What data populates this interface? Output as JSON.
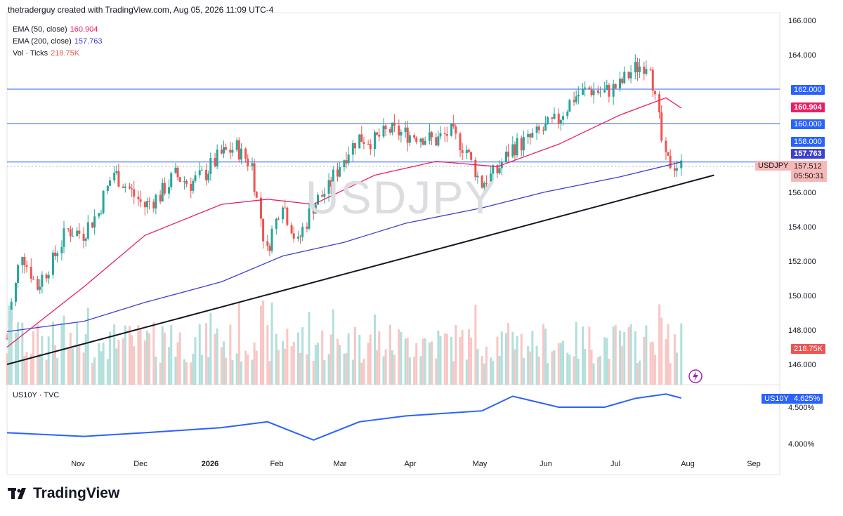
{
  "header": {
    "text": "thetraderguy created with TradingView.com, Aug 05, 2026 11:09 UTC-4"
  },
  "legend": [
    {
      "label": "EMA (50, close)",
      "value": "160.904",
      "color": "#e91e63"
    },
    {
      "label": "EMA (200, close)",
      "value": "157.763",
      "color": "#3f3fd0"
    },
    {
      "label": "Vol · Ticks",
      "value": "218.75K",
      "color": "#ef5350"
    }
  ],
  "watermark": "USDJPY",
  "lower_pane": {
    "label": "US10Y · TVC"
  },
  "price_axis": [
    "166.000",
    "164.000",
    "162.000",
    "160.000",
    "158.000",
    "156.000",
    "154.000",
    "152.000",
    "150.000",
    "148.000",
    "146.000"
  ],
  "lower_axis": [
    "4.500%",
    "4.000%"
  ],
  "time_axis": [
    "Nov",
    "Dec",
    "2026",
    "Feb",
    "Mar",
    "Apr",
    "May",
    "Jun",
    "Jul",
    "Aug",
    "Sep"
  ],
  "price_tags": {
    "level_162": "162.000",
    "ema50": "160.904",
    "level_160": "160.000",
    "level_158": "158.000",
    "ema200": "157.763",
    "symbol": "USDJPY",
    "last_price": "157.512",
    "countdown": "05:50:31",
    "volume": "218.75K",
    "us10y_symbol": "US10Y",
    "us10y_value": "4.625%"
  },
  "colors": {
    "up": "#26a69a",
    "down": "#ef5350",
    "vol_up": "#b2dfdb",
    "vol_down": "#f8c6c4",
    "ema50": "#e91e63",
    "ema200": "#3f3fd0",
    "hline": "#2962ff",
    "us10y": "#2962ff"
  },
  "logo_text": "TradingView",
  "chart_data": {
    "type": "candlestick",
    "symbol": "USDJPY",
    "y_range": [
      145.0,
      166.5
    ],
    "horizontal_levels": [
      162.0,
      160.0,
      157.763
    ],
    "trendline": [
      {
        "date": "2025-10-01",
        "price": 146.0
      },
      {
        "date": "2026-08-20",
        "price": 157.0
      }
    ],
    "series": [
      {
        "name": "USDJPY",
        "points": [
          {
            "date": "2025-10-01",
            "close": 147.5
          },
          {
            "date": "2025-10-08",
            "close": 152.6
          },
          {
            "date": "2025-10-15",
            "close": 150.5
          },
          {
            "date": "2025-10-22",
            "close": 152.0
          },
          {
            "date": "2025-10-29",
            "close": 153.8
          },
          {
            "date": "2025-11-05",
            "close": 153.6
          },
          {
            "date": "2025-11-12",
            "close": 154.8
          },
          {
            "date": "2025-11-19",
            "close": 157.2
          },
          {
            "date": "2025-11-26",
            "close": 156.2
          },
          {
            "date": "2025-12-03",
            "close": 155.2
          },
          {
            "date": "2025-12-10",
            "close": 155.8
          },
          {
            "date": "2025-12-17",
            "close": 157.0
          },
          {
            "date": "2025-12-24",
            "close": 156.5
          },
          {
            "date": "2025-12-31",
            "close": 157.1
          },
          {
            "date": "2026-01-07",
            "close": 158.2
          },
          {
            "date": "2026-01-14",
            "close": 158.6
          },
          {
            "date": "2026-01-21",
            "close": 157.6
          },
          {
            "date": "2026-01-28",
            "close": 152.5
          },
          {
            "date": "2026-02-04",
            "close": 155.6
          },
          {
            "date": "2026-02-11",
            "close": 153.0
          },
          {
            "date": "2026-02-18",
            "close": 155.2
          },
          {
            "date": "2026-02-25",
            "close": 156.2
          },
          {
            "date": "2026-03-04",
            "close": 158.0
          },
          {
            "date": "2026-03-11",
            "close": 159.2
          },
          {
            "date": "2026-03-18",
            "close": 159.0
          },
          {
            "date": "2026-03-25",
            "close": 159.6
          },
          {
            "date": "2026-04-01",
            "close": 159.4
          },
          {
            "date": "2026-04-08",
            "close": 159.3
          },
          {
            "date": "2026-04-15",
            "close": 159.0
          },
          {
            "date": "2026-04-22",
            "close": 159.5
          },
          {
            "date": "2026-04-29",
            "close": 158.5
          },
          {
            "date": "2026-05-06",
            "close": 156.5
          },
          {
            "date": "2026-05-13",
            "close": 157.2
          },
          {
            "date": "2026-05-20",
            "close": 158.6
          },
          {
            "date": "2026-05-27",
            "close": 159.0
          },
          {
            "date": "2026-06-03",
            "close": 159.6
          },
          {
            "date": "2026-06-10",
            "close": 160.2
          },
          {
            "date": "2026-06-17",
            "close": 161.5
          },
          {
            "date": "2026-06-24",
            "close": 162.0
          },
          {
            "date": "2026-07-01",
            "close": 161.8
          },
          {
            "date": "2026-07-08",
            "close": 162.2
          },
          {
            "date": "2026-07-15",
            "close": 163.2
          },
          {
            "date": "2026-07-22",
            "close": 163.6
          },
          {
            "date": "2026-07-29",
            "close": 157.8
          },
          {
            "date": "2026-08-05",
            "close": 157.512
          }
        ]
      },
      {
        "name": "EMA (50, close)",
        "points": [
          {
            "date": "2025-10-01",
            "close": 147.0
          },
          {
            "date": "2025-11-05",
            "close": 150.5
          },
          {
            "date": "2025-12-03",
            "close": 153.5
          },
          {
            "date": "2026-01-07",
            "close": 155.3
          },
          {
            "date": "2026-01-28",
            "close": 155.6
          },
          {
            "date": "2026-02-18",
            "close": 155.3
          },
          {
            "date": "2026-03-18",
            "close": 157.0
          },
          {
            "date": "2026-04-15",
            "close": 157.8
          },
          {
            "date": "2026-05-13",
            "close": 157.5
          },
          {
            "date": "2026-06-10",
            "close": 158.8
          },
          {
            "date": "2026-07-08",
            "close": 160.5
          },
          {
            "date": "2026-07-29",
            "close": 161.5
          },
          {
            "date": "2026-08-05",
            "close": 160.904
          }
        ]
      },
      {
        "name": "EMA (200, close)",
        "points": [
          {
            "date": "2025-10-01",
            "close": 147.9
          },
          {
            "date": "2025-11-05",
            "close": 148.5
          },
          {
            "date": "2025-12-03",
            "close": 149.6
          },
          {
            "date": "2026-01-07",
            "close": 150.8
          },
          {
            "date": "2026-02-04",
            "close": 152.3
          },
          {
            "date": "2026-03-04",
            "close": 153.1
          },
          {
            "date": "2026-04-01",
            "close": 154.2
          },
          {
            "date": "2026-05-06",
            "close": 155.1
          },
          {
            "date": "2026-06-03",
            "close": 156.0
          },
          {
            "date": "2026-07-08",
            "close": 156.9
          },
          {
            "date": "2026-08-05",
            "close": 157.763
          }
        ]
      },
      {
        "name": "US10Y",
        "points": [
          {
            "date": "2025-10-01",
            "close": 4.15
          },
          {
            "date": "2025-11-05",
            "close": 4.1
          },
          {
            "date": "2025-12-03",
            "close": 4.15
          },
          {
            "date": "2026-01-07",
            "close": 4.22
          },
          {
            "date": "2026-01-28",
            "close": 4.3
          },
          {
            "date": "2026-02-18",
            "close": 4.05
          },
          {
            "date": "2026-03-11",
            "close": 4.3
          },
          {
            "date": "2026-04-01",
            "close": 4.38
          },
          {
            "date": "2026-05-06",
            "close": 4.45
          },
          {
            "date": "2026-05-20",
            "close": 4.65
          },
          {
            "date": "2026-06-10",
            "close": 4.5
          },
          {
            "date": "2026-07-01",
            "close": 4.5
          },
          {
            "date": "2026-07-15",
            "close": 4.62
          },
          {
            "date": "2026-07-29",
            "close": 4.68
          },
          {
            "date": "2026-08-05",
            "close": 4.625
          }
        ]
      }
    ],
    "xlabel": "",
    "ylabel": ""
  }
}
